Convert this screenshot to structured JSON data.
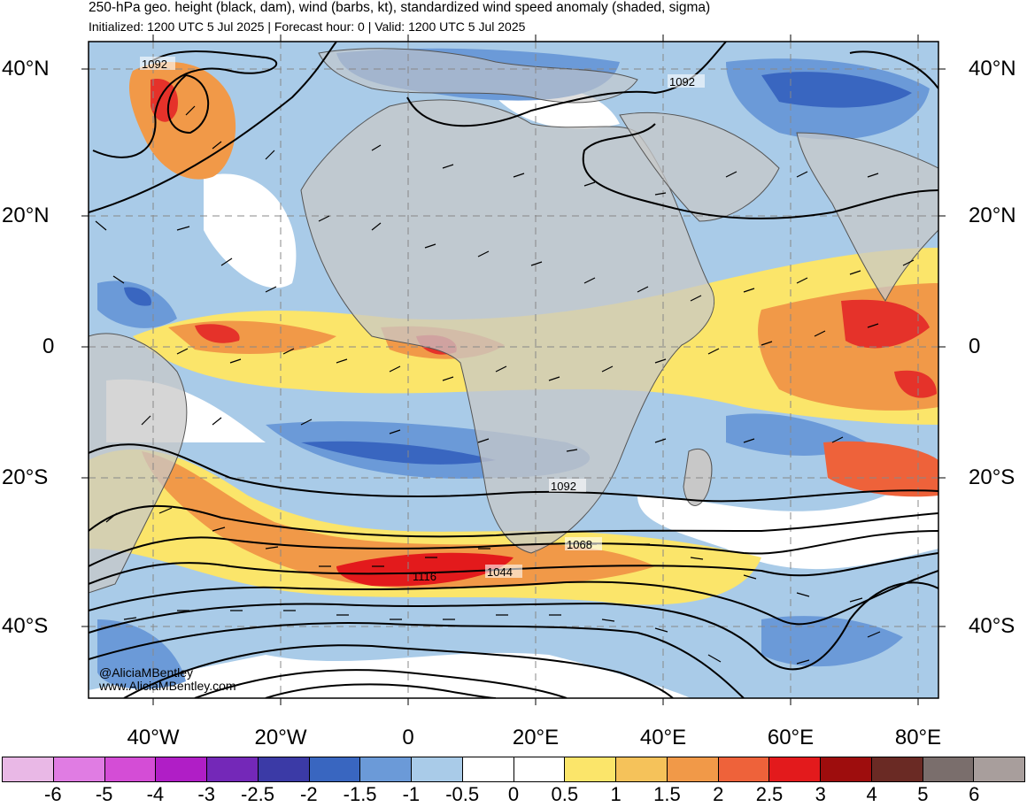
{
  "header": {
    "title": "250-hPa geo. height (black, dam), wind (barbs, kt), standardized wind speed anomaly (shaded, sigma)",
    "subtitle": "Initialized: 1200 UTC 5 Jul 2025 | Forecast hour: 0 | Valid: 1200 UTC 5 Jul 2025"
  },
  "map": {
    "lat_labels_left": [
      "40°N",
      "20°N",
      "0",
      "20°S",
      "40°S"
    ],
    "lat_labels_right": [
      "40°N",
      "20°N",
      "0",
      "20°S",
      "40°S"
    ],
    "lon_labels": [
      "40°W",
      "20°W",
      "0",
      "20°E",
      "40°E",
      "60°E",
      "80°E"
    ],
    "contour_labels": [
      "1092",
      "1092",
      "1092",
      "1068",
      "1044",
      "1116"
    ],
    "credit": {
      "handle": "@AliciaMBentley",
      "website": "www.AliciaMBentley.com"
    },
    "colors": {
      "land": "#c8c8c8",
      "neg_anomaly": "#5b8fd0",
      "strong_neg_anomaly": "#2f56b8",
      "pos_anomaly": "#f6c24f",
      "strong_pos_anomaly": "#e5322a",
      "contour": "#000000",
      "grid": "#888888"
    }
  },
  "colorbar": {
    "colors": [
      "#e9b8e6",
      "#e07ce3",
      "#d44dd6",
      "#b01ec6",
      "#7428b8",
      "#3b3aa6",
      "#3966c0",
      "#6b9ad8",
      "#a9cbe8",
      "#ffffff",
      "#ffffff",
      "#fbe56a",
      "#f5c25a",
      "#f19948",
      "#ee623a",
      "#e31a1c",
      "#9e0d0d",
      "#6a2a24",
      "#7a6e6c",
      "#a89e9c"
    ],
    "ticks": [
      "-6",
      "-5",
      "-4",
      "-3",
      "-2.5",
      "-2",
      "-1.5",
      "-1",
      "-0.5",
      "0",
      "0.5",
      "1",
      "1.5",
      "2",
      "2.5",
      "3",
      "4",
      "5",
      "6"
    ]
  }
}
